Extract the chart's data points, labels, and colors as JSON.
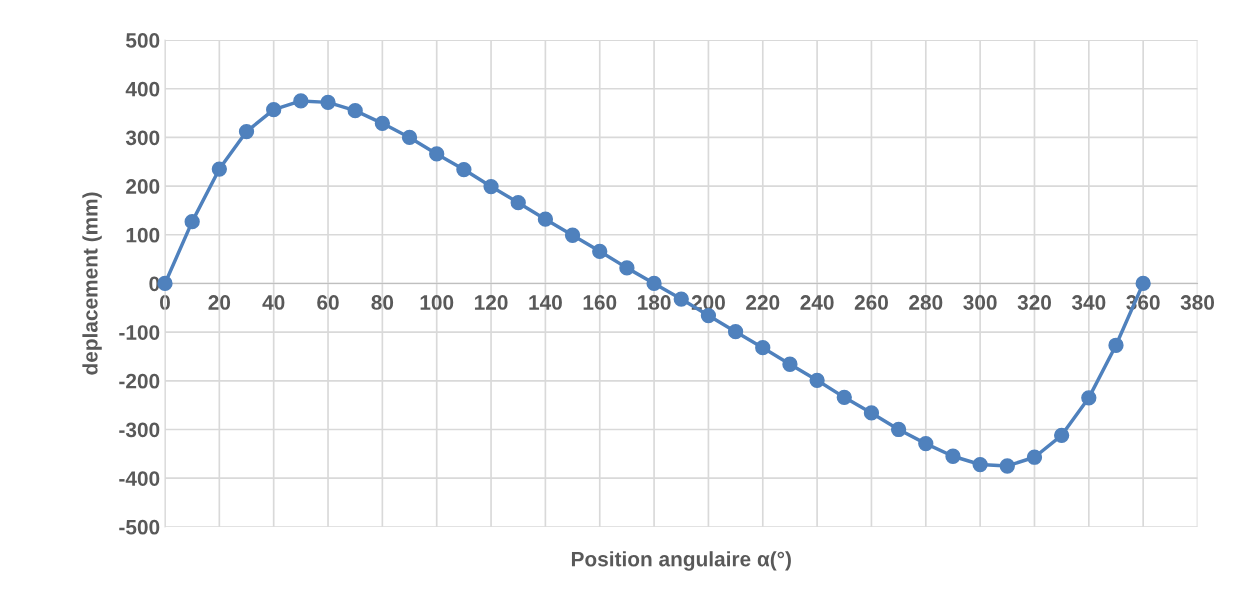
{
  "chart_data": {
    "type": "line",
    "xlabel": "Position angulaire α(°)",
    "ylabel": "deplacement (mm)",
    "x": [
      0,
      10,
      20,
      30,
      40,
      50,
      60,
      70,
      80,
      90,
      100,
      110,
      120,
      130,
      140,
      150,
      160,
      170,
      180,
      190,
      200,
      210,
      220,
      230,
      240,
      250,
      260,
      270,
      280,
      290,
      300,
      310,
      320,
      330,
      340,
      350,
      360
    ],
    "series": [
      {
        "color": "#4f81bd",
        "values": [
          0,
          127,
          235,
          312,
          357,
          375,
          372,
          355,
          329,
          300,
          266,
          234,
          199,
          166,
          132,
          99,
          66,
          32,
          0,
          -32,
          -66,
          -99,
          -132,
          -166,
          -199,
          -234,
          -266,
          -300,
          -329,
          -355,
          -372,
          -375,
          -357,
          -312,
          -235,
          -127,
          0
        ]
      }
    ],
    "xlim": [
      0,
      380
    ],
    "xticks": [
      0,
      20,
      40,
      60,
      80,
      100,
      120,
      140,
      160,
      180,
      200,
      220,
      240,
      260,
      280,
      300,
      320,
      340,
      360,
      380
    ],
    "ylim": [
      -500,
      500
    ],
    "yticks": [
      -500,
      -400,
      -300,
      -200,
      -100,
      0,
      100,
      200,
      300,
      400,
      500
    ],
    "grid": true,
    "marker": "circle",
    "line_style": "solid"
  }
}
